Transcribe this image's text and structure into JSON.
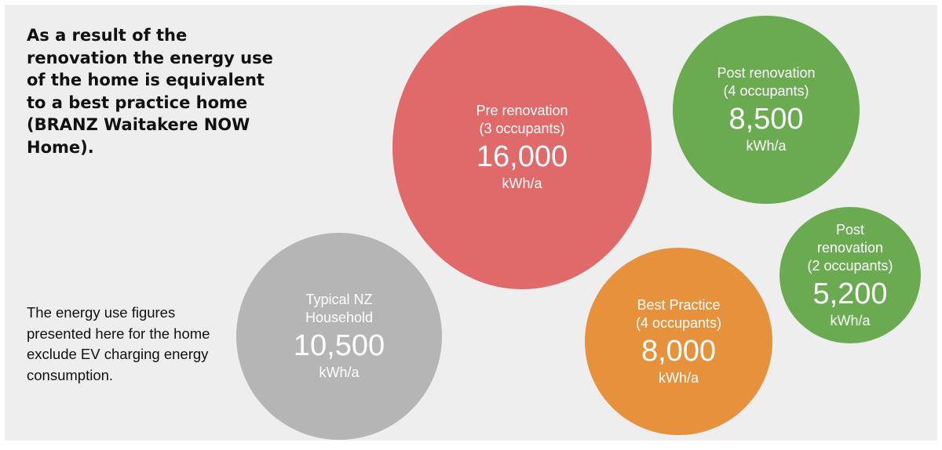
{
  "headline": "As a result of the renovation the energy use of the home is equivalent to a best practice home (BRANZ Waitakere NOW Home).",
  "note": "The energy use figures presented here for the home exclude EV charging energy consumption.",
  "chart_data": {
    "type": "bubble",
    "unit": "kWh/a",
    "bubbles": [
      {
        "id": "pre",
        "label": "Pre renovation\n(3 occupants)",
        "value": 16000,
        "value_label": "16,000",
        "unit": "kWh/a",
        "color": "#e0696a"
      },
      {
        "id": "p4",
        "label": "Post renovation\n(4 occupants)",
        "value": 8500,
        "value_label": "8,500",
        "unit": "kWh/a",
        "color": "#6aab51"
      },
      {
        "id": "typ",
        "label": "Typical NZ\nHousehold",
        "value": 10500,
        "value_label": "10,500",
        "unit": "kWh/a",
        "color": "#b5b5b5"
      },
      {
        "id": "best",
        "label": "Best Practice\n(4 occupants)",
        "value": 8000,
        "value_label": "8,000",
        "unit": "kWh/a",
        "color": "#e6923d"
      },
      {
        "id": "p2",
        "label": "Post\nrenovation\n(2 occupants)",
        "value": 5200,
        "value_label": "5,200",
        "unit": "kWh/a",
        "color": "#6aab51"
      }
    ]
  }
}
